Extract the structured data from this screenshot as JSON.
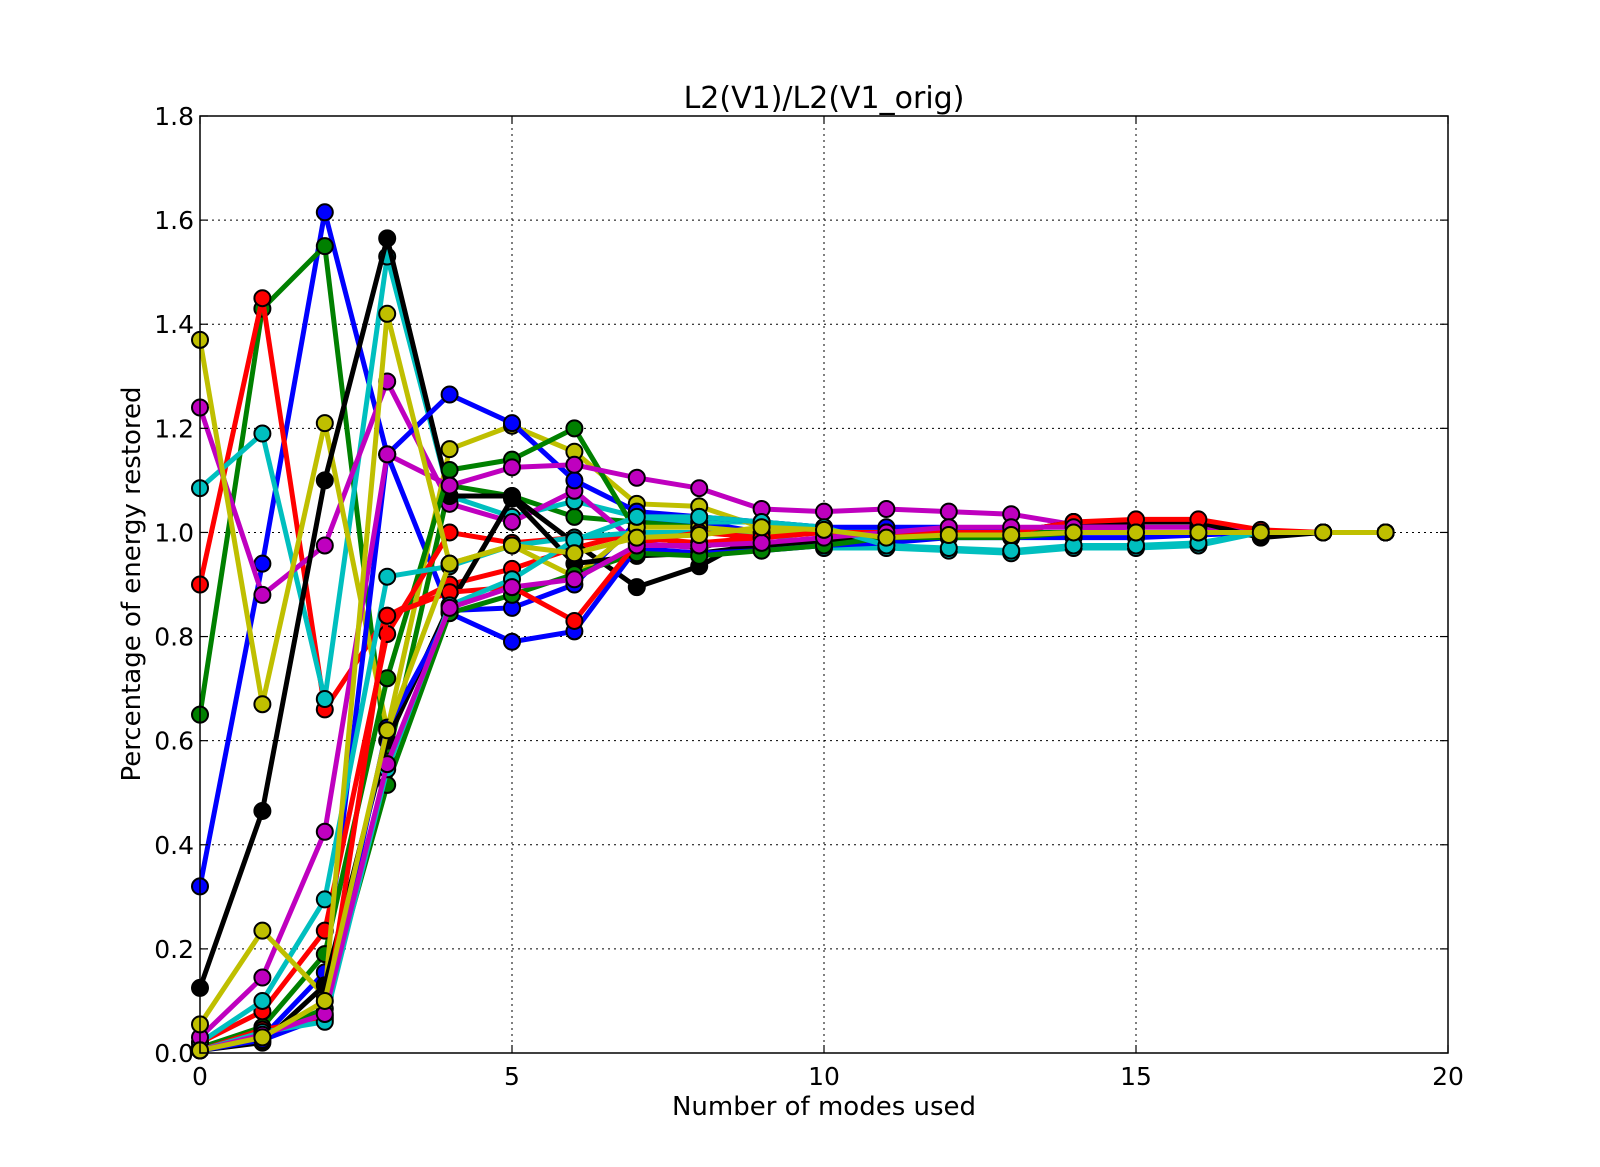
{
  "chart_data": {
    "type": "line",
    "title": "L2(V1)/L2(V1_orig)",
    "xlabel": "Number of modes used",
    "ylabel": "Percentage of energy restored",
    "xlim": [
      0,
      20
    ],
    "ylim": [
      0.0,
      1.8
    ],
    "xticks": [
      "0",
      "5",
      "10",
      "15",
      "20"
    ],
    "yticks": [
      "0.0",
      "0.2",
      "0.4",
      "0.6",
      "0.8",
      "1.0",
      "1.2",
      "1.4",
      "1.6",
      "1.8"
    ],
    "grid": true,
    "grid_style": "dotted",
    "marker": "circle",
    "x": [
      0,
      1,
      2,
      3,
      4,
      5,
      6,
      7,
      8,
      9,
      10,
      11,
      12,
      13,
      14,
      15,
      16,
      17,
      18,
      19
    ],
    "series": [
      {
        "color": "#0000ff",
        "values": [
          0.32,
          0.94,
          1.615,
          1.15,
          0.85,
          0.855,
          0.9,
          1.02,
          1.02,
          1.0,
          1.0,
          1.0,
          1.0,
          1.0,
          1.0,
          1.0,
          1.0,
          1.0,
          1.0,
          1.0
        ]
      },
      {
        "color": "#008000",
        "values": [
          0.65,
          1.43,
          1.55,
          0.56,
          1.09,
          1.07,
          1.03,
          1.02,
          1.01,
          1.0,
          1.0,
          1.0,
          1.0,
          1.0,
          1.0,
          1.0,
          1.0,
          1.0,
          1.0,
          1.0
        ]
      },
      {
        "color": "#ff0000",
        "values": [
          0.9,
          1.45,
          0.66,
          0.84,
          0.9,
          0.93,
          0.97,
          1.0,
          1.0,
          1.0,
          1.0,
          1.0,
          1.0,
          1.0,
          1.0,
          1.0,
          1.0,
          1.0,
          1.0,
          1.0
        ]
      },
      {
        "color": "#00bfbf",
        "values": [
          1.085,
          1.19,
          0.68,
          1.53,
          1.07,
          1.03,
          1.06,
          1.03,
          1.02,
          1.02,
          1.01,
          1.0,
          1.0,
          1.0,
          1.0,
          1.0,
          1.0,
          1.0,
          1.0,
          1.0
        ]
      },
      {
        "color": "#bf00bf",
        "values": [
          1.24,
          0.88,
          0.975,
          1.29,
          1.055,
          1.02,
          1.08,
          0.98,
          0.97,
          1.0,
          1.0,
          1.0,
          1.0,
          1.0,
          1.0,
          1.0,
          1.0,
          1.0,
          1.0,
          1.0
        ]
      },
      {
        "color": "#bfbf00",
        "values": [
          1.37,
          0.67,
          1.21,
          0.62,
          1.16,
          1.205,
          1.155,
          1.055,
          1.05,
          1.01,
          1.0,
          1.0,
          1.0,
          1.0,
          1.0,
          1.0,
          1.0,
          1.0,
          1.0,
          1.0
        ]
      },
      {
        "color": "#000000",
        "values": [
          0.125,
          0.465,
          1.1,
          1.565,
          1.07,
          1.07,
          0.98,
          0.895,
          0.935,
          1.0,
          1.0,
          1.0,
          1.0,
          1.0,
          1.0,
          1.0,
          1.0,
          1.0,
          1.0,
          1.0
        ]
      },
      {
        "color": "#0000ff",
        "values": [
          0.01,
          0.03,
          0.155,
          1.15,
          1.265,
          1.21,
          1.1,
          1.04,
          1.03,
          1.02,
          1.01,
          1.01,
          1.01,
          1.0,
          1.0,
          1.0,
          1.0,
          1.0,
          1.0,
          1.0
        ]
      },
      {
        "color": "#008000",
        "values": [
          0.01,
          0.05,
          0.19,
          0.72,
          1.12,
          1.14,
          1.2,
          1.0,
          0.97,
          1.0,
          1.0,
          1.0,
          1.0,
          1.0,
          1.0,
          1.0,
          1.0,
          1.0,
          1.0,
          1.0
        ]
      },
      {
        "color": "#ff0000",
        "values": [
          0.02,
          0.08,
          0.235,
          0.805,
          1.0,
          0.98,
          0.99,
          0.99,
          0.98,
          0.99,
          1.0,
          1.0,
          1.0,
          1.0,
          1.02,
          1.02,
          1.02,
          1.0,
          1.0,
          1.0
        ]
      },
      {
        "color": "#00bfbf",
        "values": [
          0.02,
          0.1,
          0.295,
          0.915,
          0.935,
          0.975,
          0.99,
          1.0,
          1.0,
          1.0,
          0.97,
          0.97,
          0.965,
          0.96,
          0.97,
          0.97,
          0.975,
          1.0,
          1.0,
          1.0
        ]
      },
      {
        "color": "#bf00bf",
        "values": [
          0.03,
          0.145,
          0.425,
          1.15,
          1.09,
          1.125,
          1.13,
          1.105,
          1.085,
          1.045,
          1.04,
          1.045,
          1.04,
          1.035,
          1.015,
          1.01,
          1.01,
          1.0,
          1.0,
          1.0
        ]
      },
      {
        "color": "#bfbf00",
        "values": [
          0.055,
          0.235,
          0.11,
          1.42,
          0.94,
          0.975,
          0.915,
          1.01,
          1.01,
          1.0,
          1.0,
          1.0,
          0.99,
          0.995,
          1.0,
          1.0,
          1.0,
          1.0,
          1.0,
          1.0
        ]
      },
      {
        "color": "#000000",
        "values": [
          0.005,
          0.02,
          0.13,
          0.6,
          0.86,
          1.065,
          0.94,
          0.955,
          0.96,
          0.975,
          0.98,
          1.0,
          1.0,
          1.0,
          1.02,
          1.02,
          1.02,
          0.99,
          1.0,
          1.0
        ]
      },
      {
        "color": "#0000ff",
        "values": [
          0.005,
          0.025,
          0.07,
          0.625,
          0.845,
          0.79,
          0.81,
          0.97,
          0.96,
          0.965,
          0.975,
          0.98,
          0.99,
          0.99,
          0.99,
          0.99,
          0.995,
          1.0,
          1.0,
          1.0
        ]
      },
      {
        "color": "#008000",
        "values": [
          0.005,
          0.035,
          0.085,
          0.515,
          0.845,
          0.88,
          0.92,
          0.96,
          0.955,
          0.965,
          0.975,
          0.99,
          0.99,
          0.99,
          1.0,
          1.0,
          1.0,
          1.0,
          1.0,
          1.0
        ]
      },
      {
        "color": "#ff0000",
        "values": [
          0.005,
          0.045,
          0.065,
          0.84,
          0.885,
          0.895,
          0.83,
          0.98,
          1.0,
          0.99,
          1.0,
          1.0,
          1.0,
          1.0,
          1.02,
          1.025,
          1.025,
          1.005,
          1.0,
          1.0
        ]
      },
      {
        "color": "#00bfbf",
        "values": [
          0.005,
          0.04,
          0.06,
          0.545,
          0.86,
          0.91,
          0.985,
          1.03,
          1.03,
          1.02,
          1.01,
          0.975,
          0.97,
          0.965,
          0.975,
          0.975,
          0.98,
          1.0,
          1.0,
          1.0
        ]
      },
      {
        "color": "#bf00bf",
        "values": [
          0.005,
          0.035,
          0.075,
          0.555,
          0.855,
          0.895,
          0.91,
          0.975,
          0.975,
          0.98,
          0.99,
          1.0,
          1.01,
          1.01,
          1.01,
          1.0,
          1.0,
          1.0,
          1.0,
          1.0
        ]
      },
      {
        "color": "#bfbf00",
        "values": [
          0.005,
          0.03,
          0.1,
          0.62,
          0.94,
          0.975,
          0.96,
          0.99,
          0.995,
          1.01,
          1.005,
          0.99,
          0.995,
          0.995,
          1.0,
          1.0,
          1.0,
          1.0,
          1.0,
          1.0
        ]
      }
    ]
  }
}
